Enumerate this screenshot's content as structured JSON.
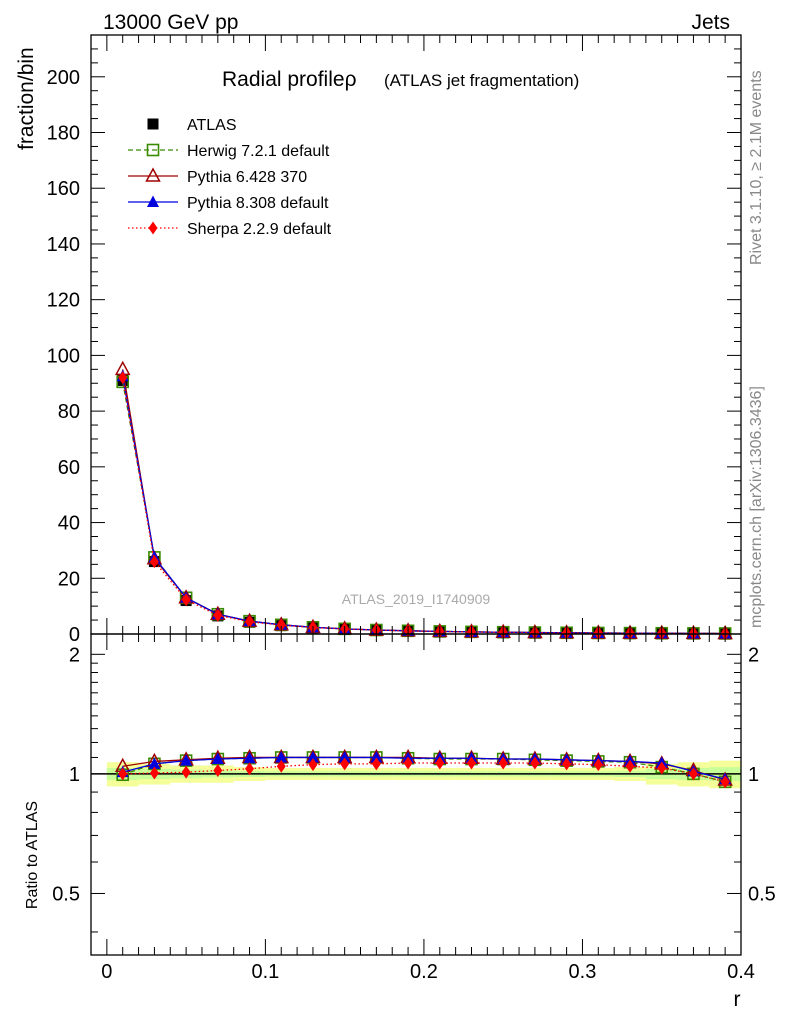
{
  "header": {
    "left": "13000 GeV pp",
    "right": "Jets"
  },
  "side_labels": {
    "rivet": "Rivet 3.1.10, ≥ 2.1M events",
    "mcplots": "mcplots.cern.ch [arXiv:1306.3436]"
  },
  "watermark": "ATLAS_2019_I1740909",
  "chart_data": [
    {
      "type": "line",
      "panel": "main",
      "title": "Radial profileρ",
      "subtitle": "(ATLAS jet fragmentation)",
      "ylabel": "fraction/bin",
      "xlim": [
        -0.01,
        0.4
      ],
      "ylim": [
        0,
        215
      ],
      "yticks": [
        0,
        20,
        40,
        60,
        80,
        100,
        120,
        140,
        160,
        180,
        200
      ],
      "yticklabels": [
        "0",
        "20",
        "40",
        "60",
        "80",
        "100",
        "120",
        "140",
        "160",
        "180",
        "200"
      ],
      "x": [
        0.01,
        0.03,
        0.05,
        0.07,
        0.09,
        0.11,
        0.13,
        0.15,
        0.17,
        0.19,
        0.21,
        0.23,
        0.25,
        0.27,
        0.29,
        0.31,
        0.33,
        0.35,
        0.37,
        0.39
      ],
      "series": [
        {
          "name": "ATLAS",
          "color": "#000000",
          "marker": "square-filled",
          "line": "none",
          "values": [
            91,
            26,
            12,
            6.5,
            4.2,
            3.0,
            2.2,
            1.7,
            1.3,
            1.05,
            0.85,
            0.7,
            0.58,
            0.48,
            0.4,
            0.34,
            0.29,
            0.25,
            0.22,
            0.2
          ]
        },
        {
          "name": "Herwig 7.2.1 default",
          "color": "#3a8a00",
          "marker": "square-open",
          "line": "dashed",
          "values": [
            90.5,
            27.5,
            13,
            7.1,
            4.6,
            3.3,
            2.4,
            1.85,
            1.43,
            1.15,
            0.93,
            0.77,
            0.64,
            0.53,
            0.44,
            0.37,
            0.32,
            0.27,
            0.23,
            0.19
          ]
        },
        {
          "name": "Pythia 6.428 370",
          "color": "#a00000",
          "marker": "triangle-open",
          "line": "solid",
          "values": [
            95,
            27,
            13,
            7.1,
            4.6,
            3.3,
            2.4,
            1.85,
            1.43,
            1.15,
            0.93,
            0.77,
            0.64,
            0.53,
            0.44,
            0.37,
            0.32,
            0.27,
            0.23,
            0.19
          ]
        },
        {
          "name": "Pythia 8.308 default",
          "color": "#0000dd",
          "marker": "triangle-filled",
          "line": "solid",
          "values": [
            92.5,
            27.5,
            13,
            7.1,
            4.6,
            3.3,
            2.4,
            1.85,
            1.43,
            1.15,
            0.93,
            0.77,
            0.64,
            0.53,
            0.44,
            0.37,
            0.32,
            0.27,
            0.23,
            0.19
          ]
        },
        {
          "name": "Sherpa 2.2.9 default",
          "color": "#ff0000",
          "marker": "diamond-filled",
          "line": "dotted",
          "values": [
            92,
            26,
            12.3,
            6.7,
            4.4,
            3.2,
            2.35,
            1.8,
            1.4,
            1.12,
            0.91,
            0.75,
            0.62,
            0.51,
            0.42,
            0.35,
            0.3,
            0.26,
            0.22,
            0.19
          ]
        }
      ]
    },
    {
      "type": "line",
      "panel": "ratio",
      "xlabel": "r",
      "ylabel": "Ratio to ATLAS",
      "xlim": [
        -0.01,
        0.4
      ],
      "ylim": [
        0.35,
        2.25
      ],
      "xticks": [
        0,
        0.1,
        0.2,
        0.3,
        0.4
      ],
      "xticklabels": [
        "0",
        "0.1",
        "0.2",
        "0.3",
        "0.4"
      ],
      "yticks": [
        0.5,
        1,
        2
      ],
      "yticklabels": [
        "0.5",
        "1",
        "2"
      ],
      "scale": "log",
      "x": [
        0.01,
        0.03,
        0.05,
        0.07,
        0.09,
        0.11,
        0.13,
        0.15,
        0.17,
        0.19,
        0.21,
        0.23,
        0.25,
        0.27,
        0.29,
        0.31,
        0.33,
        0.35,
        0.37,
        0.39
      ],
      "band_outer": [
        0.07,
        0.06,
        0.05,
        0.05,
        0.04,
        0.035,
        0.035,
        0.035,
        0.035,
        0.035,
        0.035,
        0.035,
        0.035,
        0.035,
        0.035,
        0.035,
        0.04,
        0.06,
        0.07,
        0.08
      ],
      "band_inner": [
        0.035,
        0.03,
        0.025,
        0.02,
        0.018,
        0.015,
        0.015,
        0.015,
        0.015,
        0.015,
        0.015,
        0.015,
        0.015,
        0.015,
        0.015,
        0.015,
        0.018,
        0.03,
        0.035,
        0.04
      ],
      "band_colors": {
        "outer": "#f5ff99",
        "inner": "#c8ff99"
      },
      "series": [
        {
          "name": "Herwig 7.2.1 default",
          "color": "#3a8a00",
          "marker": "square-open",
          "line": "dashed",
          "values": [
            0.995,
            1.06,
            1.08,
            1.09,
            1.095,
            1.1,
            1.1,
            1.1,
            1.1,
            1.095,
            1.09,
            1.09,
            1.09,
            1.085,
            1.08,
            1.075,
            1.07,
            1.04,
            1.0,
            0.955
          ]
        },
        {
          "name": "Pythia 6.428 370",
          "color": "#a00000",
          "marker": "triangle-open",
          "line": "solid",
          "values": [
            1.045,
            1.075,
            1.085,
            1.095,
            1.1,
            1.1,
            1.1,
            1.1,
            1.1,
            1.1,
            1.095,
            1.095,
            1.09,
            1.09,
            1.085,
            1.08,
            1.075,
            1.06,
            1.02,
            0.965
          ]
        },
        {
          "name": "Pythia 8.308 default",
          "color": "#0000dd",
          "marker": "triangle-filled",
          "line": "solid",
          "values": [
            1.01,
            1.06,
            1.08,
            1.09,
            1.095,
            1.1,
            1.1,
            1.1,
            1.1,
            1.095,
            1.095,
            1.095,
            1.09,
            1.09,
            1.085,
            1.08,
            1.075,
            1.065,
            1.015,
            0.97
          ]
        },
        {
          "name": "Sherpa 2.2.9 default",
          "color": "#ff0000",
          "marker": "diamond-filled",
          "line": "dotted",
          "values": [
            1.0,
            1.005,
            1.01,
            1.02,
            1.03,
            1.045,
            1.055,
            1.06,
            1.06,
            1.065,
            1.065,
            1.065,
            1.065,
            1.065,
            1.06,
            1.055,
            1.045,
            1.035,
            1.0,
            0.955
          ]
        }
      ]
    }
  ]
}
